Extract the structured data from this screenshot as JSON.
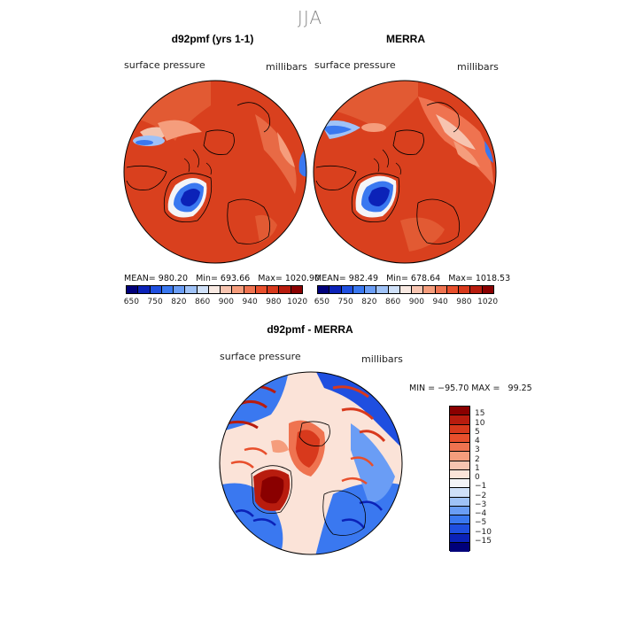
{
  "season": "JJA",
  "panels": [
    {
      "title": "d92pmf (yrs 1-1)",
      "variable": "surface pressure",
      "units": "millibars",
      "stats": "MEAN= 980.20   Min= 693.66   Max= 1020.90"
    },
    {
      "title": "MERRA",
      "variable": "surface pressure",
      "units": "millibars",
      "stats": "MEAN= 982.49   Min= 678.64   Max= 1018.53"
    }
  ],
  "pressure_colorbar": {
    "colors": [
      "#00007a",
      "#0b22b8",
      "#1f4fe0",
      "#3a78f0",
      "#6a9df5",
      "#9fc2f7",
      "#cfe0f8",
      "#f8e9e2",
      "#f7c4b0",
      "#f59d7c",
      "#ef7350",
      "#e84f2c",
      "#d8391c",
      "#b81c0e",
      "#8a0000"
    ],
    "ticks": [
      "650",
      "750",
      "820",
      "860",
      "900",
      "940",
      "980",
      "1020"
    ]
  },
  "diff": {
    "title": "d92pmf - MERRA",
    "variable": "surface pressure",
    "units": "millibars",
    "minmax": "MIN = −95.70 MAX =   99.25",
    "colorbar": {
      "colors": [
        "#8a0000",
        "#b81c0e",
        "#d8391c",
        "#e84f2c",
        "#ef7350",
        "#f59d7c",
        "#f7c4b0",
        "#fbe3d8",
        "#f4f4f7",
        "#cfe0f8",
        "#9fc2f7",
        "#6a9df5",
        "#3a78f0",
        "#1f4fe0",
        "#0b22b8",
        "#00007a"
      ],
      "ticks": [
        "15",
        "10",
        "5",
        "4",
        "3",
        "2",
        "1",
        "0",
        "−1",
        "−2",
        "−3",
        "−4",
        "−5",
        "−10",
        "−15"
      ]
    }
  }
}
